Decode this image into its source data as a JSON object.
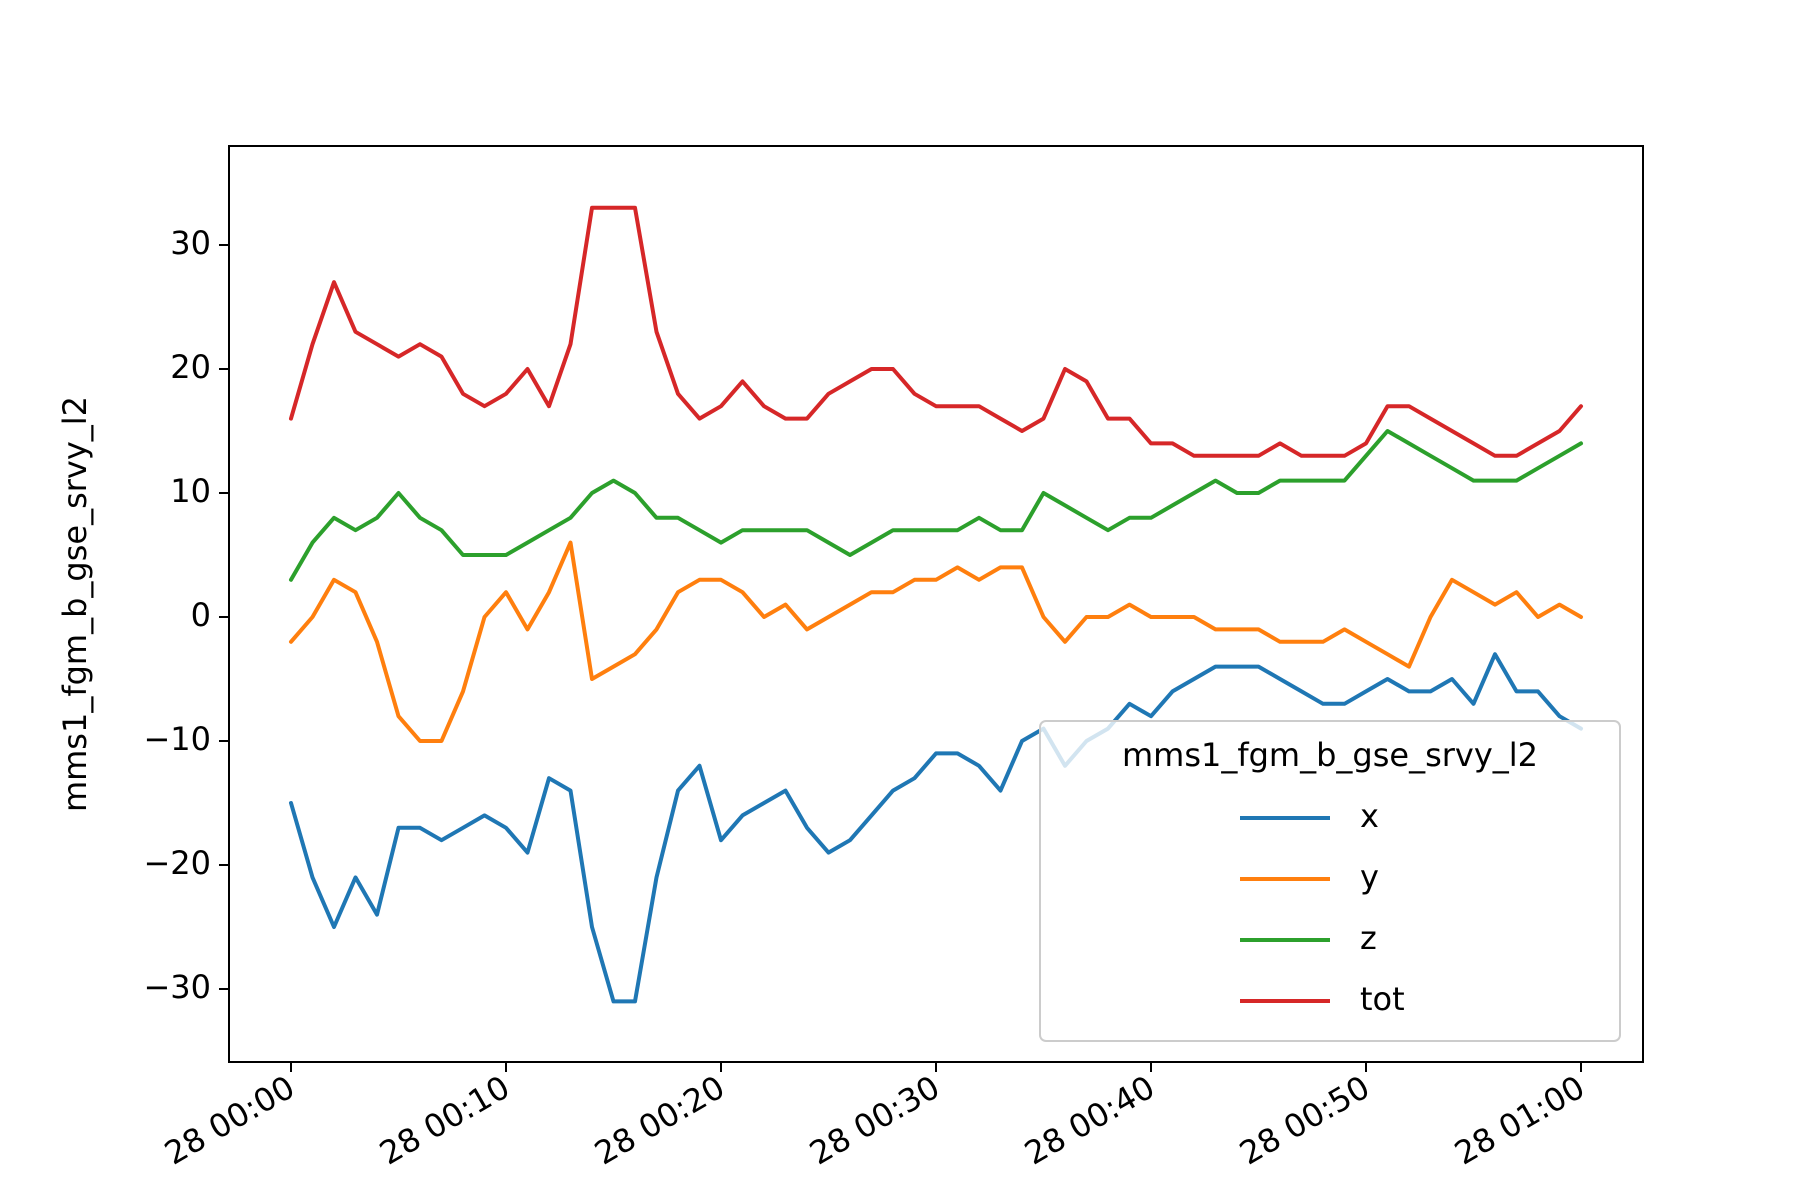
{
  "chart_data": {
    "type": "line",
    "title": "",
    "xlabel": "",
    "ylabel": "mms1_fgm_b_gse_srvy_l2",
    "xlim": [
      "00:00",
      "01:00"
    ],
    "ylim": [
      -36,
      38
    ],
    "x_unit": "minutes",
    "x_ticks": [
      0,
      10,
      20,
      30,
      40,
      50,
      60
    ],
    "x_tick_labels": [
      "28 00:00",
      "28 00:10",
      "28 00:20",
      "28 00:30",
      "28 00:40",
      "28 00:50",
      "28 01:00"
    ],
    "y_ticks": [
      -30,
      -20,
      -10,
      0,
      10,
      20,
      30
    ],
    "y_tick_labels": [
      "−30",
      "−20",
      "−10",
      "0",
      "10",
      "20",
      "30"
    ],
    "grid": false,
    "legend": {
      "title": "mms1_fgm_b_gse_srvy_l2",
      "placement": "lower right"
    },
    "x": [
      0,
      1,
      2,
      3,
      4,
      5,
      6,
      7,
      8,
      9,
      10,
      11,
      12,
      13,
      14,
      15,
      16,
      17,
      18,
      19,
      20,
      21,
      22,
      23,
      24,
      25,
      26,
      27,
      28,
      29,
      30,
      31,
      32,
      33,
      34,
      35,
      36,
      37,
      38,
      39,
      40,
      41,
      42,
      43,
      44,
      45,
      46,
      47,
      48,
      49,
      50,
      51,
      52,
      53,
      54,
      55,
      56,
      57,
      58,
      59,
      60
    ],
    "series": [
      {
        "name": "x",
        "color": "#1f77b4",
        "values": [
          -15,
          -21,
          -25,
          -21,
          -24,
          -17,
          -17,
          -18,
          -17,
          -16,
          -17,
          -19,
          -13,
          -14,
          -25,
          -31,
          -31,
          -21,
          -14,
          -12,
          -18,
          -16,
          -15,
          -14,
          -17,
          -19,
          -18,
          -16,
          -14,
          -13,
          -11,
          -11,
          -12,
          -14,
          -10,
          -9,
          -12,
          -10,
          -9,
          -7,
          -8,
          -6,
          -5,
          -4,
          -4,
          -4,
          -5,
          -6,
          -7,
          -7,
          -6,
          -5,
          -6,
          -6,
          -5,
          -7,
          -3,
          -6,
          -6,
          -8,
          -9
        ]
      },
      {
        "name": "y",
        "color": "#ff7f0e",
        "values": [
          -2,
          0,
          3,
          2,
          -2,
          -8,
          -10,
          -10,
          -6,
          0,
          2,
          -1,
          2,
          6,
          -5,
          -4,
          -3,
          -1,
          2,
          3,
          3,
          2,
          0,
          1,
          -1,
          0,
          1,
          2,
          2,
          3,
          3,
          4,
          3,
          4,
          4,
          0,
          -2,
          0,
          0,
          1,
          0,
          0,
          0,
          -1,
          -1,
          -1,
          -2,
          -2,
          -2,
          -1,
          -2,
          -3,
          -4,
          0,
          3,
          2,
          1,
          2,
          0,
          1,
          0
        ]
      },
      {
        "name": "z",
        "color": "#2ca02c",
        "values": [
          3,
          6,
          8,
          7,
          8,
          10,
          8,
          7,
          5,
          5,
          5,
          6,
          7,
          8,
          10,
          11,
          10,
          8,
          8,
          7,
          6,
          7,
          7,
          7,
          7,
          6,
          5,
          6,
          7,
          7,
          7,
          7,
          8,
          7,
          7,
          10,
          9,
          8,
          7,
          8,
          8,
          9,
          10,
          11,
          10,
          10,
          11,
          11,
          11,
          11,
          13,
          15,
          14,
          13,
          12,
          11,
          11,
          11,
          12,
          13,
          14
        ]
      },
      {
        "name": "tot",
        "color": "#d62728",
        "values": [
          16,
          22,
          27,
          23,
          22,
          21,
          22,
          21,
          18,
          17,
          18,
          20,
          17,
          22,
          33,
          33,
          33,
          23,
          18,
          16,
          17,
          19,
          17,
          16,
          16,
          18,
          19,
          20,
          20,
          18,
          17,
          17,
          17,
          16,
          15,
          16,
          20,
          19,
          16,
          16,
          14,
          14,
          13,
          13,
          13,
          13,
          14,
          13,
          13,
          13,
          14,
          17,
          17,
          16,
          15,
          14,
          13,
          13,
          14,
          15,
          17
        ]
      }
    ]
  }
}
